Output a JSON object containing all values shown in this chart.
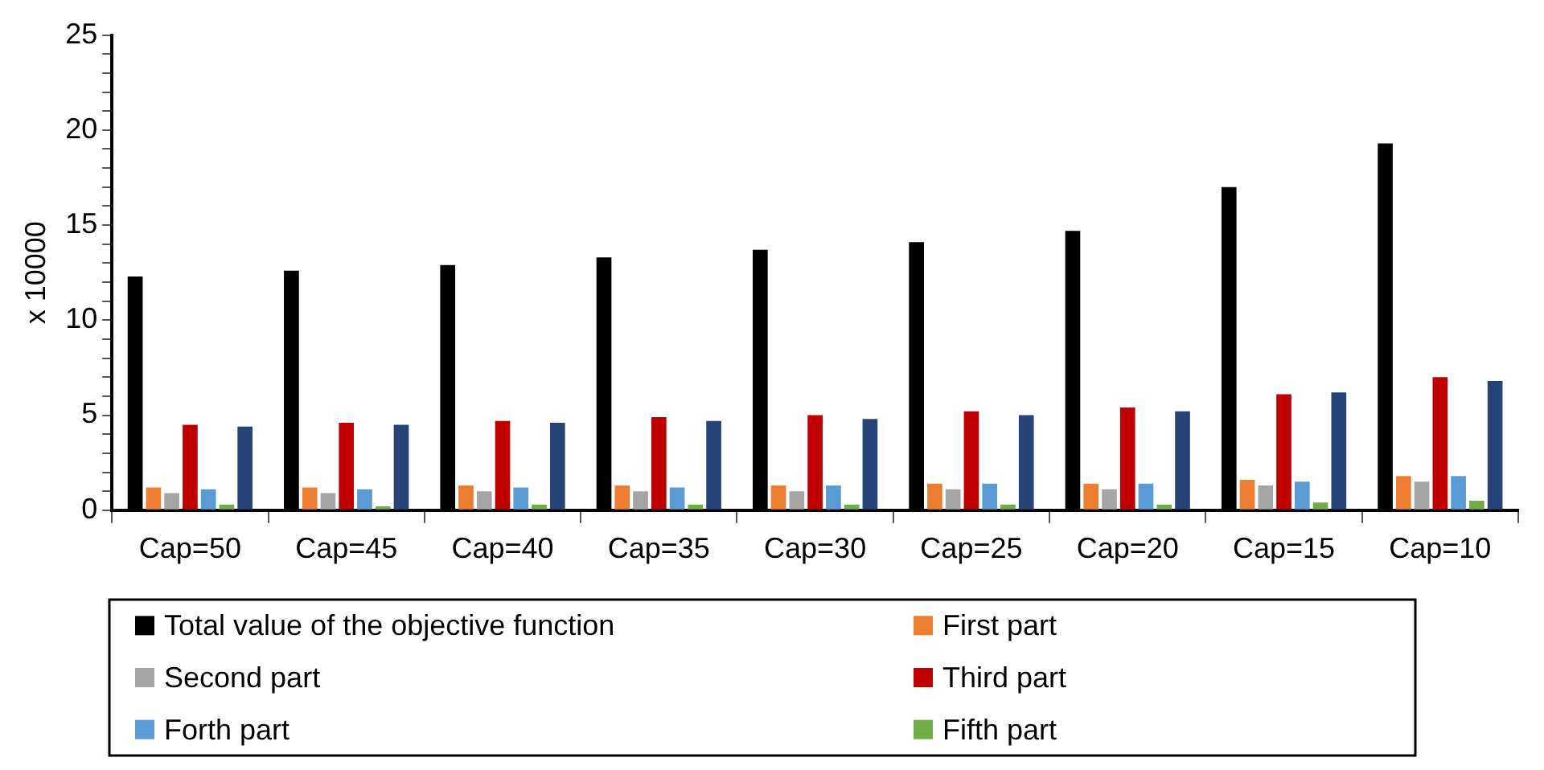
{
  "chart_data": {
    "type": "bar",
    "ylabel": "x 10000",
    "categories": [
      "Cap=50",
      "Cap=45",
      "Cap=40",
      "Cap=35",
      "Cap=30",
      "Cap=25",
      "Cap=20",
      "Cap=15",
      "Cap=10"
    ],
    "series": [
      {
        "name": "Total value of the objective function",
        "color": "#000000",
        "values": [
          12.3,
          12.6,
          12.9,
          13.3,
          13.7,
          14.1,
          14.7,
          17.0,
          19.3
        ]
      },
      {
        "name": "First part",
        "color": "#ed7d31",
        "values": [
          1.2,
          1.2,
          1.3,
          1.3,
          1.3,
          1.4,
          1.4,
          1.6,
          1.8
        ]
      },
      {
        "name": "Second part",
        "color": "#a5a5a5",
        "values": [
          0.9,
          0.9,
          1.0,
          1.0,
          1.0,
          1.1,
          1.1,
          1.3,
          1.5
        ]
      },
      {
        "name": "Third part",
        "color": "#c00000",
        "values": [
          4.5,
          4.6,
          4.7,
          4.9,
          5.0,
          5.2,
          5.4,
          6.1,
          7.0
        ]
      },
      {
        "name": "Forth part",
        "color": "#5b9bd5",
        "values": [
          1.1,
          1.1,
          1.2,
          1.2,
          1.3,
          1.4,
          1.4,
          1.5,
          1.8
        ]
      },
      {
        "name": "Fifth part",
        "color": "#70ad47",
        "values": [
          0.3,
          0.2,
          0.3,
          0.3,
          0.3,
          0.3,
          0.3,
          0.4,
          0.5
        ]
      },
      {
        "color": "#264478",
        "values": [
          4.4,
          4.5,
          4.6,
          4.7,
          4.8,
          5.0,
          5.2,
          6.2,
          6.8
        ]
      }
    ],
    "ylim": [
      0,
      25
    ],
    "yticks": [
      0,
      {
        "value": 1,
        "label": null
      },
      {
        "value": 2,
        "label": null
      },
      {
        "value": 3,
        "label": null
      },
      {
        "value": 4,
        "label": null
      },
      5,
      {
        "value": 6,
        "label": null
      },
      {
        "value": 7,
        "label": null
      },
      {
        "value": 8,
        "label": null
      },
      {
        "value": 9,
        "label": null
      },
      10,
      {
        "value": 11,
        "label": null
      },
      {
        "value": 12,
        "label": null
      },
      {
        "value": 13,
        "label": null
      },
      {
        "value": 14,
        "label": null
      },
      15,
      {
        "value": 16,
        "label": null
      },
      {
        "value": 17,
        "label": null
      },
      {
        "value": 18,
        "label": null
      },
      {
        "value": 19,
        "label": null
      },
      20,
      {
        "value": 21,
        "label": null
      },
      {
        "value": 22,
        "label": null
      },
      {
        "value": 23,
        "label": null
      },
      {
        "value": 24,
        "label": null
      },
      25
    ],
    "grid": false,
    "legend": "bottom"
  }
}
